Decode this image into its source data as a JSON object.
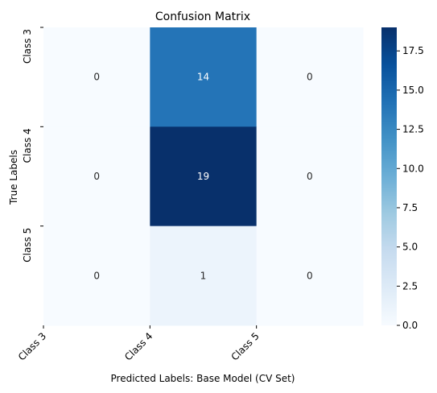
{
  "chart_data": {
    "type": "heatmap",
    "title": "Confusion Matrix",
    "xlabel": "Predicted Labels: Base Model (CV Set)",
    "ylabel": "True Labels",
    "x_tick_labels": [
      "Class 3",
      "Class 4",
      "Class 5"
    ],
    "y_tick_labels": [
      "Class 3",
      "Class 4",
      "Class 5"
    ],
    "matrix": [
      [
        0,
        14,
        0
      ],
      [
        0,
        19,
        0
      ],
      [
        0,
        1,
        0
      ]
    ],
    "colorbar": {
      "range": [
        0,
        19
      ],
      "ticks": [
        "0.0",
        "2.5",
        "5.0",
        "7.5",
        "10.0",
        "12.5",
        "15.0",
        "17.5"
      ],
      "colormap": "Blues"
    },
    "colors": {
      "low": "#f7fbff",
      "high": "#08306b",
      "text_dark": "#262626",
      "text_light": "#ffffff"
    }
  }
}
